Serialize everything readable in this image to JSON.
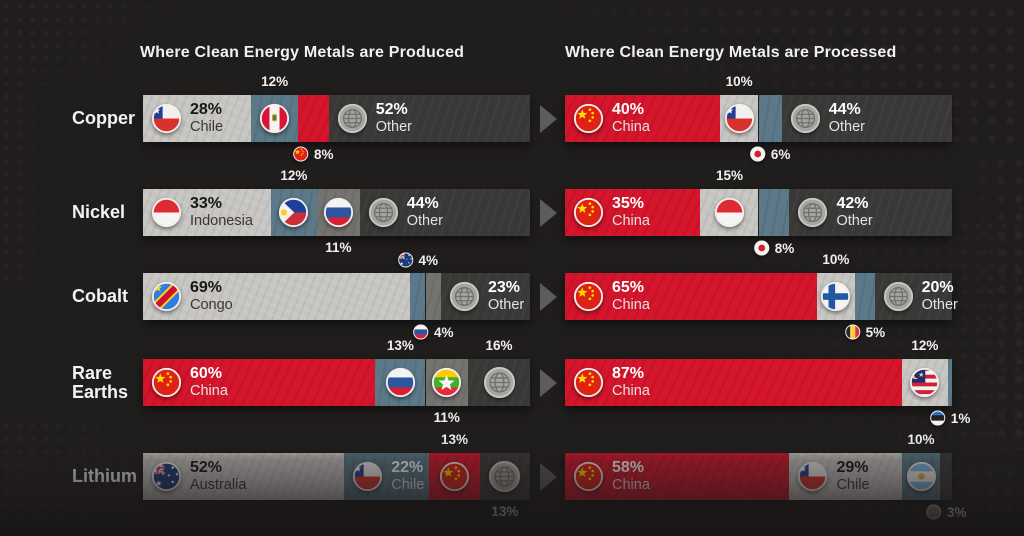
{
  "chart_data": {
    "type": "bar",
    "variant": "paired horizontal stacked bars, share of global total",
    "unit": "%",
    "grid": false,
    "legend": "none (flags label each segment)",
    "panels": [
      {
        "key": "produced",
        "title": "Where Clean Energy Metals are Produced"
      },
      {
        "key": "processed",
        "title": "Where Clean Energy Metals are Processed"
      }
    ],
    "categories": [
      "Copper",
      "Nickel",
      "Cobalt",
      "Rare Earths",
      "Lithium"
    ],
    "colors": {
      "lightgray": "#c7c5c2",
      "bluegray": "#5b7988",
      "gray": "#757370",
      "red": "#d5152b",
      "dark": "#3a3837",
      "background": "#201d1d",
      "label_text": "#f1f0ee"
    },
    "rows": [
      {
        "metal": "Copper",
        "produced": [
          {
            "country": "Chile",
            "pct": 28,
            "color": "lightgray",
            "flag": "chile",
            "flag_inside": true,
            "label": "inside"
          },
          {
            "country": "Peru",
            "pct": 12,
            "color": "bluegray",
            "flag": "peru",
            "flag_inside": true,
            "label": "above",
            "label_flag": false
          },
          {
            "country": "China",
            "pct": 8,
            "color": "red",
            "flag": "china",
            "flag_inside": false,
            "label": "below",
            "label_flag": true
          },
          {
            "country": "Other",
            "pct": 52,
            "color": "dark",
            "flag": "globe",
            "flag_inside": true,
            "label": "inside"
          }
        ],
        "processed": [
          {
            "country": "China",
            "pct": 40,
            "color": "red",
            "flag": "china",
            "flag_inside": true,
            "label": "inside"
          },
          {
            "country": "Chile",
            "pct": 10,
            "color": "lightgray",
            "flag": "chile",
            "flag_inside": true,
            "label": "above",
            "label_flag": false
          },
          {
            "country": "Japan",
            "pct": 6,
            "color": "bluegray",
            "flag": "japan",
            "flag_inside": false,
            "label": "below",
            "label_flag": true
          },
          {
            "country": "Other",
            "pct": 44,
            "color": "dark",
            "flag": "globe",
            "flag_inside": true,
            "label": "inside"
          }
        ]
      },
      {
        "metal": "Nickel",
        "produced": [
          {
            "country": "Indonesia",
            "pct": 33,
            "color": "lightgray",
            "flag": "indonesia",
            "flag_inside": true,
            "label": "inside"
          },
          {
            "country": "Philippines",
            "pct": 12,
            "color": "bluegray",
            "flag": "philippines",
            "flag_inside": true,
            "label": "above",
            "label_flag": false
          },
          {
            "country": "Russia",
            "pct": 11,
            "color": "gray",
            "flag": "russia",
            "flag_inside": true,
            "label": "below",
            "label_flag": false
          },
          {
            "country": "Other",
            "pct": 44,
            "color": "dark",
            "flag": "globe",
            "flag_inside": true,
            "label": "inside"
          }
        ],
        "processed": [
          {
            "country": "China",
            "pct": 35,
            "color": "red",
            "flag": "china",
            "flag_inside": true,
            "label": "inside"
          },
          {
            "country": "Indonesia",
            "pct": 15,
            "color": "lightgray",
            "flag": "indonesia",
            "flag_inside": true,
            "label": "above",
            "label_flag": false
          },
          {
            "country": "Japan",
            "pct": 8,
            "color": "bluegray",
            "flag": "japan",
            "flag_inside": false,
            "label": "below",
            "label_flag": true
          },
          {
            "country": "Other",
            "pct": 42,
            "color": "dark",
            "flag": "globe",
            "flag_inside": true,
            "label": "inside"
          }
        ]
      },
      {
        "metal": "Cobalt",
        "produced": [
          {
            "country": "Congo",
            "pct": 69,
            "color": "lightgray",
            "flag": "congo",
            "flag_inside": true,
            "label": "inside"
          },
          {
            "country": "Australia",
            "pct": 4,
            "color": "bluegray",
            "flag": "australia",
            "flag_inside": false,
            "label": "above",
            "label_flag": true
          },
          {
            "country": "Russia",
            "pct": 4,
            "color": "gray",
            "flag": "russia",
            "flag_inside": false,
            "label": "below",
            "label_flag": true
          },
          {
            "country": "Other",
            "pct": 23,
            "color": "dark",
            "flag": "globe",
            "flag_inside": true,
            "label": "inside"
          }
        ],
        "processed": [
          {
            "country": "China",
            "pct": 65,
            "color": "red",
            "flag": "china",
            "flag_inside": true,
            "label": "inside"
          },
          {
            "country": "Finland",
            "pct": 10,
            "color": "lightgray",
            "flag": "finland",
            "flag_inside": true,
            "label": "above",
            "label_flag": false
          },
          {
            "country": "Belgium",
            "pct": 5,
            "color": "bluegray",
            "flag": "belgium",
            "flag_inside": false,
            "label": "below",
            "label_flag": true
          },
          {
            "country": "Other",
            "pct": 20,
            "color": "dark",
            "flag": "globe",
            "flag_inside": true,
            "label": "inside"
          }
        ]
      },
      {
        "metal": "Rare Earths",
        "produced": [
          {
            "country": "China",
            "pct": 60,
            "color": "red",
            "flag": "china",
            "flag_inside": true,
            "label": "inside"
          },
          {
            "country": "Russia",
            "pct": 13,
            "color": "bluegray",
            "flag": "russia",
            "flag_inside": true,
            "label": "above",
            "label_flag": false
          },
          {
            "country": "Myanmar",
            "pct": 11,
            "color": "gray",
            "flag": "myanmar",
            "flag_inside": true,
            "label": "below",
            "label_flag": false
          },
          {
            "country": "Other",
            "pct": 16,
            "color": "dark",
            "flag": "globe",
            "flag_inside": true,
            "label": "above",
            "label_flag": false
          }
        ],
        "processed": [
          {
            "country": "China",
            "pct": 87,
            "color": "red",
            "flag": "china",
            "flag_inside": true,
            "label": "inside"
          },
          {
            "country": "Malaysia",
            "pct": 12,
            "color": "lightgray",
            "flag": "malaysia",
            "flag_inside": true,
            "label": "above",
            "label_flag": false
          },
          {
            "country": "Estonia",
            "pct": 1,
            "color": "bluegray",
            "flag": "estonia",
            "flag_inside": false,
            "label": "below",
            "label_flag": true
          }
        ]
      },
      {
        "metal": "Lithium",
        "produced": [
          {
            "country": "Australia",
            "pct": 52,
            "color": "lightgray",
            "flag": "australia",
            "flag_inside": true,
            "label": "inside"
          },
          {
            "country": "Chile",
            "pct": 22,
            "color": "bluegray",
            "flag": "chile",
            "flag_inside": true,
            "label": "inside"
          },
          {
            "country": "China",
            "pct": 13,
            "color": "red",
            "flag": "china",
            "flag_inside": true,
            "label": "above",
            "label_flag": false
          },
          {
            "country": "Other",
            "pct": 13,
            "color": "dark",
            "flag": "globe",
            "flag_inside": true,
            "label": "below",
            "label_flag": false
          }
        ],
        "processed": [
          {
            "country": "China",
            "pct": 58,
            "color": "red",
            "flag": "china",
            "flag_inside": true,
            "label": "inside"
          },
          {
            "country": "Chile",
            "pct": 29,
            "color": "lightgray",
            "flag": "chile",
            "flag_inside": true,
            "label": "inside"
          },
          {
            "country": "Argentina",
            "pct": 10,
            "color": "bluegray",
            "flag": "argentina",
            "flag_inside": true,
            "label": "above",
            "label_flag": false
          },
          {
            "country": "Other",
            "pct": 3,
            "color": "dark",
            "flag": "globe",
            "flag_inside": false,
            "label": "below",
            "label_flag": true
          }
        ]
      }
    ]
  }
}
